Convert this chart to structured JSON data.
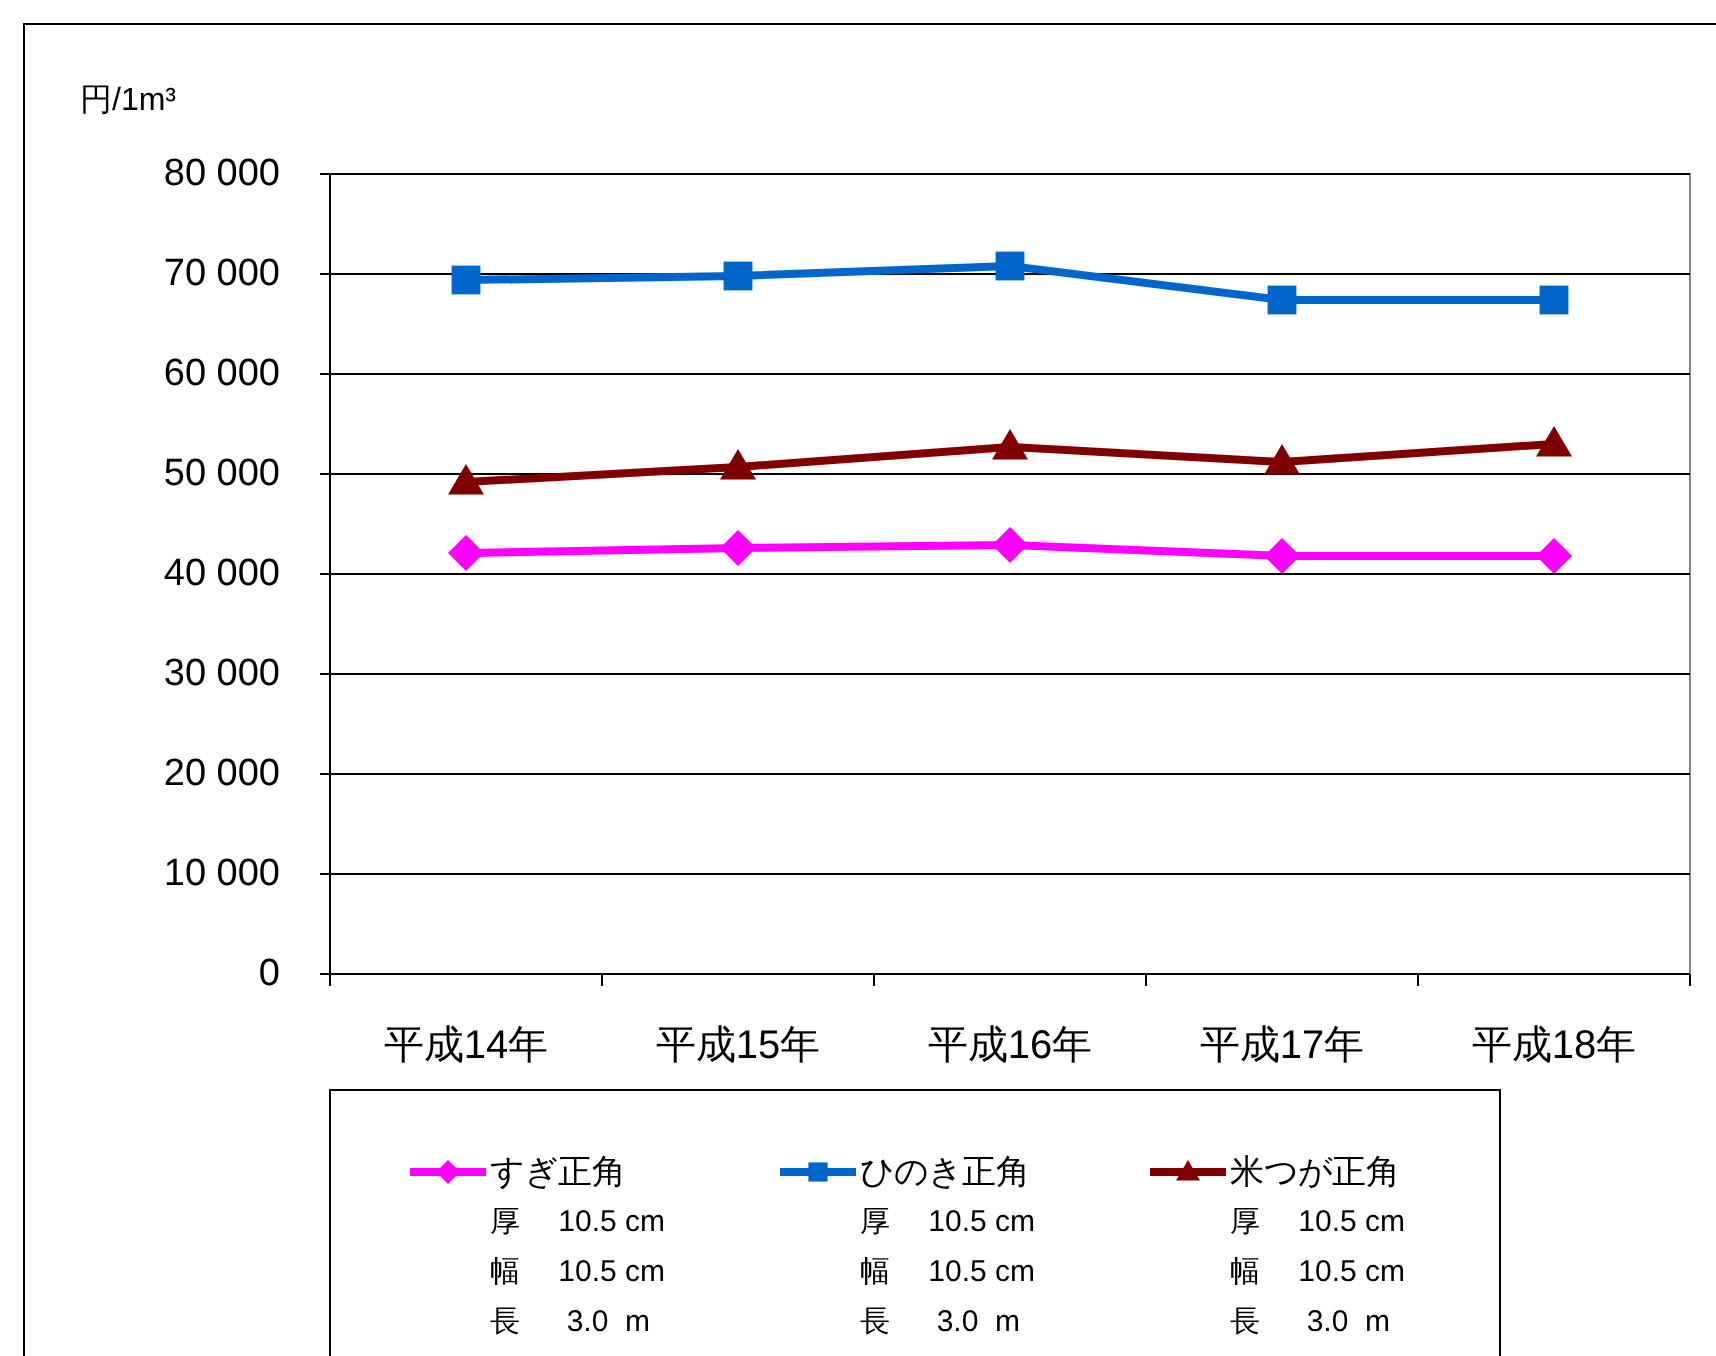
{
  "chart_data": {
    "type": "line",
    "ylabel": "円/1m³",
    "categories": [
      "平成14年",
      "平成15年",
      "平成16年",
      "平成17年",
      "平成18年"
    ],
    "series": [
      {
        "name": "すぎ正角",
        "color": "#ff00ff",
        "marker": "diamond",
        "values": [
          42100,
          42600,
          42900,
          41800,
          41800
        ]
      },
      {
        "name": "ひのき正角",
        "color": "#0066cc",
        "marker": "square",
        "values": [
          69400,
          69800,
          70800,
          67400,
          67400
        ]
      },
      {
        "name": "米つが正角",
        "color": "#800000",
        "marker": "triangle",
        "values": [
          49200,
          50700,
          52700,
          51200,
          53000
        ]
      }
    ],
    "ylim": [
      0,
      80000
    ],
    "yticks": [
      {
        "value": 0,
        "label": "0"
      },
      {
        "value": 10000,
        "label": "10 000"
      },
      {
        "value": 20000,
        "label": "20 000"
      },
      {
        "value": 30000,
        "label": "30 000"
      },
      {
        "value": 40000,
        "label": "40 000"
      },
      {
        "value": 50000,
        "label": "50 000"
      },
      {
        "value": 60000,
        "label": "60 000"
      },
      {
        "value": 70000,
        "label": "70 000"
      },
      {
        "value": 80000,
        "label": "80 000"
      }
    ],
    "grid": "y",
    "legend": "bottom",
    "annotations": [
      "厚　 10.5 cm",
      "幅　 10.5 cm",
      "長　  3.0  m",
      "厚　 10.5 cm",
      "幅　 10.5 cm",
      "長　  3.0  m",
      "厚　 10.5 cm",
      "幅　 10.5 cm",
      "長　  3.0  m"
    ]
  }
}
